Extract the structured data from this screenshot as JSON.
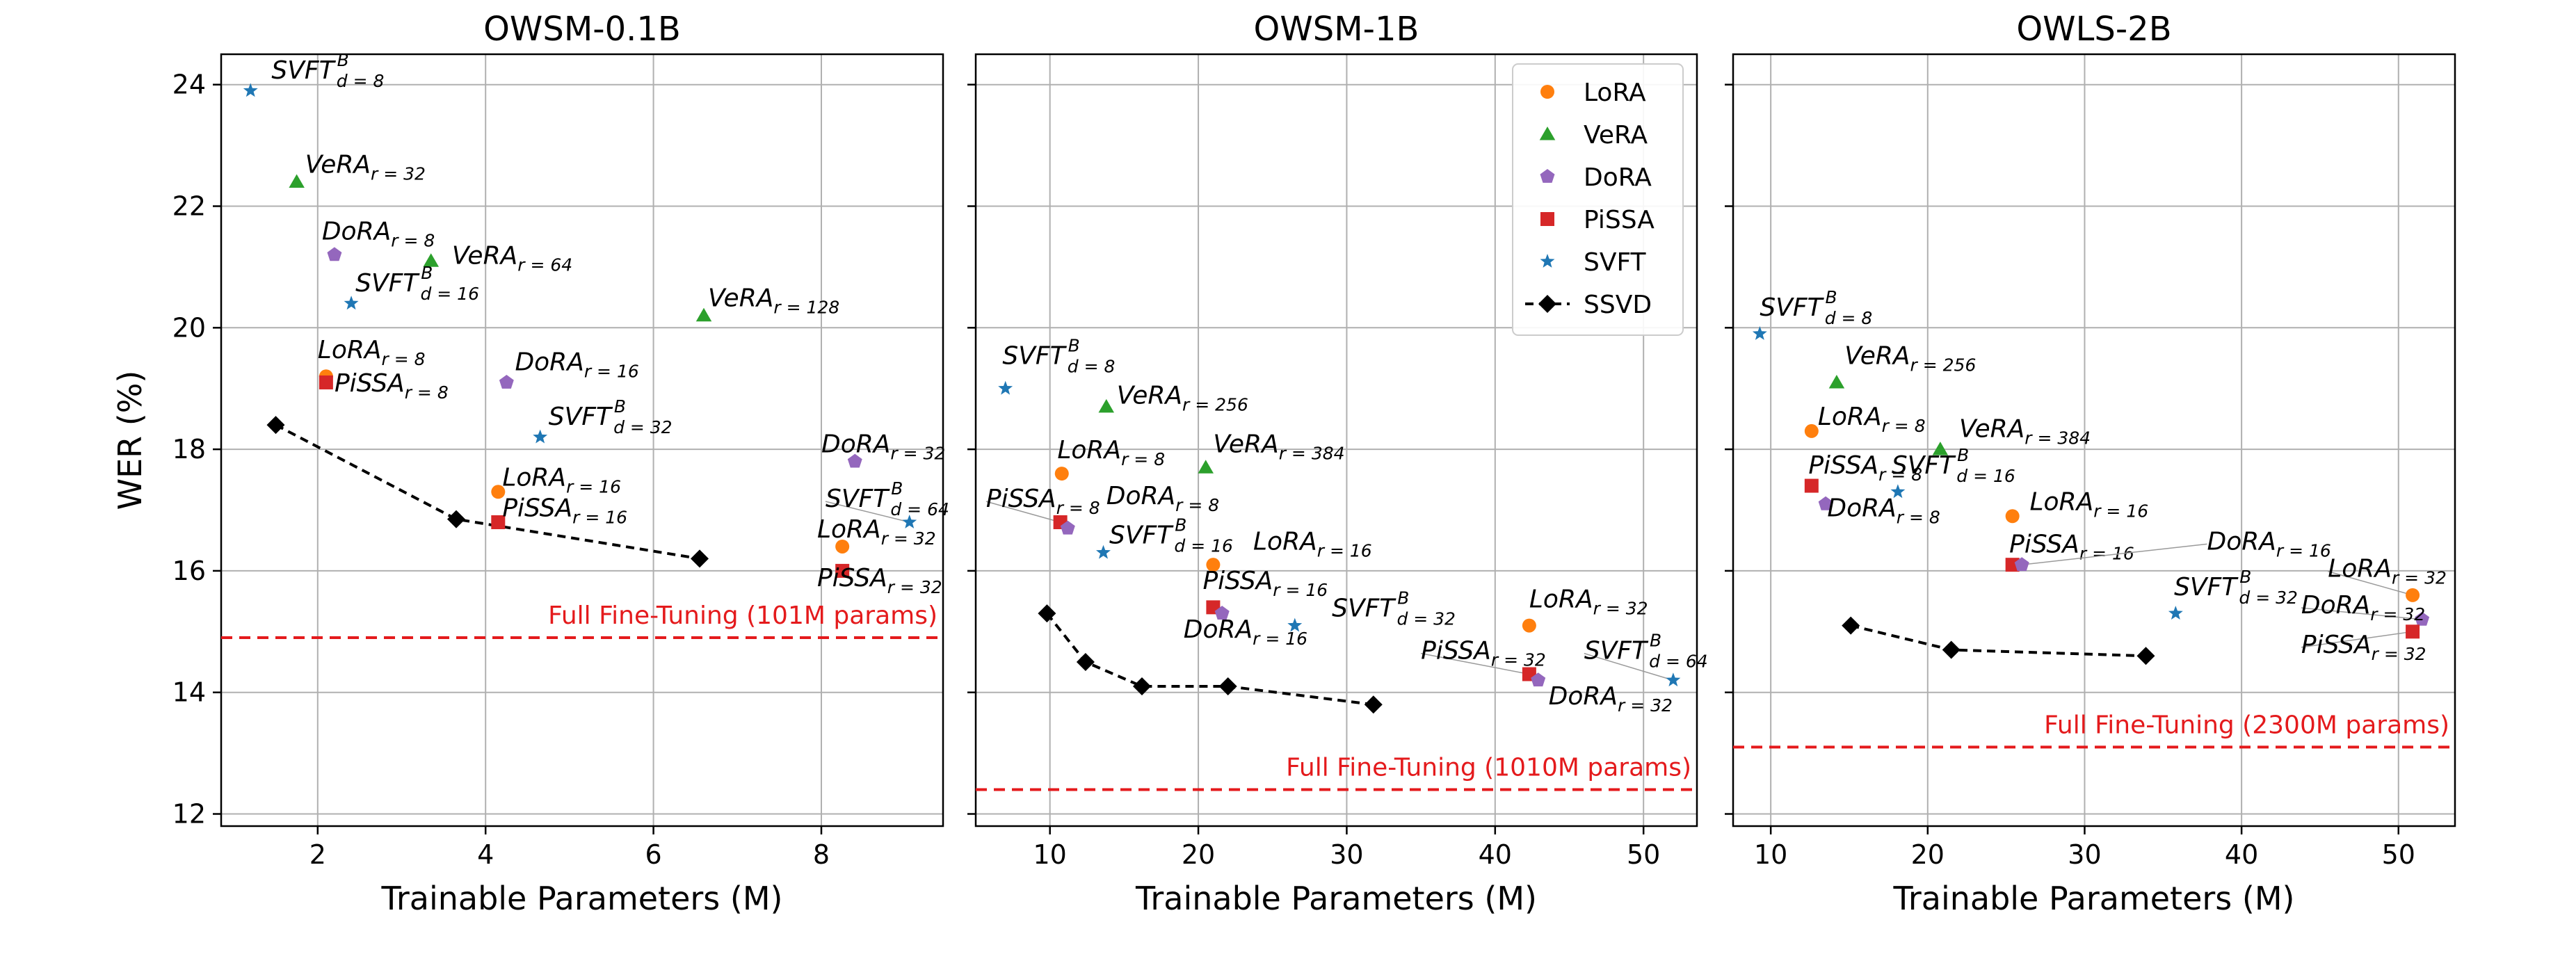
{
  "chart_data": [
    {
      "type": "scatter",
      "title": "OWSM-0.1B",
      "xlabel": "Trainable Parameters (M)",
      "ylabel": "WER (%)",
      "xlim": [
        0.85,
        9.45
      ],
      "ylim": [
        11.8,
        24.5
      ],
      "xticks": [
        2,
        4,
        6,
        8
      ],
      "yticks": [
        12,
        14,
        16,
        18,
        20,
        22,
        24
      ],
      "full_ft": {
        "y": 14.9,
        "label": "Full Fine-Tuning (101M params)"
      },
      "ssvd": [
        [
          1.5,
          18.4
        ],
        [
          3.65,
          16.85
        ],
        [
          6.55,
          16.2
        ]
      ],
      "points": [
        {
          "m": "SVFT",
          "x": 1.2,
          "y": 23.9,
          "base": "SVFT",
          "sup": "B",
          "sub": "d = 8",
          "lx": 1.45,
          "ly": 24.1
        },
        {
          "m": "VeRA",
          "x": 1.75,
          "y": 22.4,
          "base": "VeRA",
          "sup": "",
          "sub": "r = 32",
          "lx": 1.85,
          "ly": 22.55
        },
        {
          "m": "DoRA",
          "x": 2.2,
          "y": 21.2,
          "base": "DoRA",
          "sup": "",
          "sub": "r = 8",
          "lx": 2.05,
          "ly": 21.45
        },
        {
          "m": "VeRA",
          "x": 3.35,
          "y": 21.1,
          "base": "VeRA",
          "sup": "",
          "sub": "r = 64",
          "lx": 3.6,
          "ly": 21.05
        },
        {
          "m": "SVFT",
          "x": 2.4,
          "y": 20.4,
          "base": "SVFT",
          "sup": "B",
          "sub": "d = 16",
          "lx": 2.45,
          "ly": 20.6
        },
        {
          "m": "VeRA",
          "x": 6.6,
          "y": 20.2,
          "base": "VeRA",
          "sup": "",
          "sub": "r = 128",
          "lx": 6.65,
          "ly": 20.35
        },
        {
          "m": "LoRA",
          "x": 2.1,
          "y": 19.2,
          "base": "LoRA",
          "sup": "",
          "sub": "r = 8",
          "lx": 2.0,
          "ly": 19.5
        },
        {
          "m": "PiSSA",
          "x": 2.1,
          "y": 19.1,
          "base": "PiSSA",
          "sup": "",
          "sub": "r = 8",
          "lx": 2.2,
          "ly": 18.95
        },
        {
          "m": "DoRA",
          "x": 4.25,
          "y": 19.1,
          "base": "DoRA",
          "sup": "",
          "sub": "r = 16",
          "lx": 4.35,
          "ly": 19.3
        },
        {
          "m": "SVFT",
          "x": 4.65,
          "y": 18.2,
          "base": "SVFT",
          "sup": "B",
          "sub": "d = 32",
          "lx": 4.75,
          "ly": 18.4
        },
        {
          "m": "DoRA",
          "x": 8.4,
          "y": 17.8,
          "base": "DoRA",
          "sup": "",
          "sub": "r = 32",
          "lx": 8.0,
          "ly": 17.95
        },
        {
          "m": "LoRA",
          "x": 4.15,
          "y": 17.3,
          "base": "LoRA",
          "sup": "",
          "sub": "r = 16",
          "lx": 4.2,
          "ly": 17.4
        },
        {
          "m": "PiSSA",
          "x": 4.15,
          "y": 16.8,
          "base": "PiSSA",
          "sup": "",
          "sub": "r = 16",
          "lx": 4.2,
          "ly": 16.9
        },
        {
          "m": "SVFT",
          "x": 9.05,
          "y": 16.8,
          "base": "SVFT",
          "sup": "B",
          "sub": "d = 64",
          "lx": 8.05,
          "ly": 17.05
        },
        {
          "m": "LoRA",
          "x": 8.25,
          "y": 16.4,
          "base": "LoRA",
          "sup": "",
          "sub": "r = 32",
          "lx": 7.95,
          "ly": 16.55
        },
        {
          "m": "PiSSA",
          "x": 8.25,
          "y": 16.0,
          "base": "PiSSA",
          "sup": "",
          "sub": "r = 32",
          "lx": 7.95,
          "ly": 15.75
        }
      ]
    },
    {
      "type": "scatter",
      "title": "OWSM-1B",
      "xlabel": "Trainable Parameters (M)",
      "ylabel": "",
      "xlim": [
        5,
        53.6
      ],
      "ylim": [
        11.8,
        24.5
      ],
      "xticks": [
        10,
        20,
        30,
        40,
        50
      ],
      "yticks": [
        12,
        14,
        16,
        18,
        20,
        22,
        24
      ],
      "full_ft": {
        "y": 12.4,
        "label": "Full Fine-Tuning (1010M params)"
      },
      "ssvd": [
        [
          9.8,
          15.3
        ],
        [
          12.4,
          14.5
        ],
        [
          16.2,
          14.1
        ],
        [
          22.0,
          14.1
        ],
        [
          31.8,
          13.8
        ]
      ],
      "points": [
        {
          "m": "SVFT",
          "x": 7.0,
          "y": 19.0,
          "base": "SVFT",
          "sup": "B",
          "sub": "d = 8",
          "lx": 6.8,
          "ly": 19.4
        },
        {
          "m": "VeRA",
          "x": 13.8,
          "y": 18.7,
          "base": "VeRA",
          "sup": "",
          "sub": "r = 256",
          "lx": 14.5,
          "ly": 18.75
        },
        {
          "m": "VeRA",
          "x": 20.5,
          "y": 17.7,
          "base": "VeRA",
          "sup": "",
          "sub": "r = 384",
          "lx": 21.0,
          "ly": 17.95
        },
        {
          "m": "LoRA",
          "x": 10.8,
          "y": 17.6,
          "base": "LoRA",
          "sup": "",
          "sub": "r = 8",
          "lx": 10.5,
          "ly": 17.85
        },
        {
          "m": "PiSSA",
          "x": 10.7,
          "y": 16.8,
          "base": "PiSSA",
          "sup": "",
          "sub": "r = 8",
          "lx": 5.7,
          "ly": 17.05
        },
        {
          "m": "DoRA",
          "x": 11.2,
          "y": 16.7,
          "base": "DoRA",
          "sup": "",
          "sub": "r = 8",
          "lx": 13.8,
          "ly": 17.1
        },
        {
          "m": "SVFT",
          "x": 13.6,
          "y": 16.3,
          "base": "SVFT",
          "sup": "B",
          "sub": "d = 16",
          "lx": 14.0,
          "ly": 16.45
        },
        {
          "m": "LoRA",
          "x": 21.0,
          "y": 16.1,
          "base": "LoRA",
          "sup": "",
          "sub": "r = 16",
          "lx": 23.7,
          "ly": 16.35
        },
        {
          "m": "PiSSA",
          "x": 21.0,
          "y": 15.4,
          "base": "PiSSA",
          "sup": "",
          "sub": "r = 16",
          "lx": 20.3,
          "ly": 15.7
        },
        {
          "m": "DoRA",
          "x": 21.6,
          "y": 15.3,
          "base": "DoRA",
          "sup": "",
          "sub": "r = 16",
          "lx": 19.0,
          "ly": 14.9
        },
        {
          "m": "SVFT",
          "x": 26.5,
          "y": 15.1,
          "base": "SVFT",
          "sup": "B",
          "sub": "d = 32",
          "lx": 29.0,
          "ly": 15.25
        },
        {
          "m": "LoRA",
          "x": 42.3,
          "y": 15.1,
          "base": "LoRA",
          "sup": "",
          "sub": "r = 32",
          "lx": 42.3,
          "ly": 15.4
        },
        {
          "m": "PiSSA",
          "x": 42.3,
          "y": 14.3,
          "base": "PiSSA",
          "sup": "",
          "sub": "r = 32",
          "lx": 35.0,
          "ly": 14.55
        },
        {
          "m": "DoRA",
          "x": 42.9,
          "y": 14.2,
          "base": "DoRA",
          "sup": "",
          "sub": "r = 32",
          "lx": 43.6,
          "ly": 13.8
        },
        {
          "m": "SVFT",
          "x": 52.0,
          "y": 14.2,
          "base": "SVFT",
          "sup": "B",
          "sub": "d = 64",
          "lx": 46.0,
          "ly": 14.55
        }
      ]
    },
    {
      "type": "scatter",
      "title": "OWLS-2B",
      "xlabel": "Trainable Parameters (M)",
      "ylabel": "",
      "xlim": [
        7.6,
        53.6
      ],
      "ylim": [
        11.8,
        24.5
      ],
      "xticks": [
        10,
        20,
        30,
        40,
        50
      ],
      "yticks": [
        12,
        14,
        16,
        18,
        20,
        22,
        24
      ],
      "full_ft": {
        "y": 13.1,
        "label": "Full Fine-Tuning (2300M params)"
      },
      "ssvd": [
        [
          15.1,
          15.1
        ],
        [
          21.5,
          14.7
        ],
        [
          33.9,
          14.6
        ]
      ],
      "points": [
        {
          "m": "SVFT",
          "x": 9.3,
          "y": 19.9,
          "base": "SVFT",
          "sup": "B",
          "sub": "d = 8",
          "lx": 9.3,
          "ly": 20.2
        },
        {
          "m": "VeRA",
          "x": 14.2,
          "y": 19.1,
          "base": "VeRA",
          "sup": "",
          "sub": "r = 256",
          "lx": 14.7,
          "ly": 19.4
        },
        {
          "m": "LoRA",
          "x": 12.6,
          "y": 18.3,
          "base": "LoRA",
          "sup": "",
          "sub": "r = 8",
          "lx": 13.0,
          "ly": 18.4
        },
        {
          "m": "VeRA",
          "x": 20.8,
          "y": 18.0,
          "base": "VeRA",
          "sup": "",
          "sub": "r = 384",
          "lx": 22.0,
          "ly": 18.2
        },
        {
          "m": "PiSSA",
          "x": 12.6,
          "y": 17.4,
          "base": "PiSSA",
          "sup": "",
          "sub": "r = 8",
          "lx": 12.4,
          "ly": 17.6
        },
        {
          "m": "SVFT",
          "x": 18.1,
          "y": 17.3,
          "base": "SVFT",
          "sup": "B",
          "sub": "d = 16",
          "lx": 17.7,
          "ly": 17.6
        },
        {
          "m": "DoRA",
          "x": 13.5,
          "y": 17.1,
          "base": "DoRA",
          "sup": "",
          "sub": "r = 8",
          "lx": 13.6,
          "ly": 16.9
        },
        {
          "m": "LoRA",
          "x": 25.4,
          "y": 16.9,
          "base": "LoRA",
          "sup": "",
          "sub": "r = 16",
          "lx": 26.5,
          "ly": 17.0
        },
        {
          "m": "PiSSA",
          "x": 25.4,
          "y": 16.1,
          "base": "PiSSA",
          "sup": "",
          "sub": "r = 16",
          "lx": 25.2,
          "ly": 16.3
        },
        {
          "m": "DoRA",
          "x": 26.0,
          "y": 16.1,
          "base": "DoRA",
          "sup": "",
          "sub": "r = 16",
          "lx": 37.8,
          "ly": 16.35
        },
        {
          "m": "SVFT",
          "x": 35.8,
          "y": 15.3,
          "base": "SVFT",
          "sup": "B",
          "sub": "d = 32",
          "lx": 35.7,
          "ly": 15.6
        },
        {
          "m": "LoRA",
          "x": 50.9,
          "y": 15.6,
          "base": "LoRA",
          "sup": "",
          "sub": "r = 32",
          "lx": 45.5,
          "ly": 15.9
        },
        {
          "m": "DoRA",
          "x": 51.5,
          "y": 15.2,
          "base": "DoRA",
          "sup": "",
          "sub": "r = 32",
          "lx": 43.8,
          "ly": 15.3
        },
        {
          "m": "PiSSA",
          "x": 50.9,
          "y": 15.0,
          "base": "PiSSA",
          "sup": "",
          "sub": "r = 32",
          "lx": 43.8,
          "ly": 14.65
        }
      ]
    }
  ],
  "legend": {
    "placement": "top-right of middle panel",
    "entries": [
      {
        "name": "LoRA",
        "marker": "circle",
        "color": "#ff7f0e"
      },
      {
        "name": "VeRA",
        "marker": "triangle",
        "color": "#2ca02c"
      },
      {
        "name": "DoRA",
        "marker": "pentagon",
        "color": "#9467bd"
      },
      {
        "name": "PiSSA",
        "marker": "square",
        "color": "#d62728"
      },
      {
        "name": "SVFT",
        "marker": "star",
        "color": "#1f77b4"
      },
      {
        "name": "SSVD",
        "marker": "diamond-line",
        "color": "#000000"
      }
    ]
  },
  "colors": {
    "LoRA": "#ff7f0e",
    "VeRA": "#2ca02c",
    "DoRA": "#9467bd",
    "PiSSA": "#d62728",
    "SVFT": "#1f77b4",
    "SSVD": "#000000",
    "full_ft": "#e41a1c",
    "grid": "#b0b0b0"
  }
}
